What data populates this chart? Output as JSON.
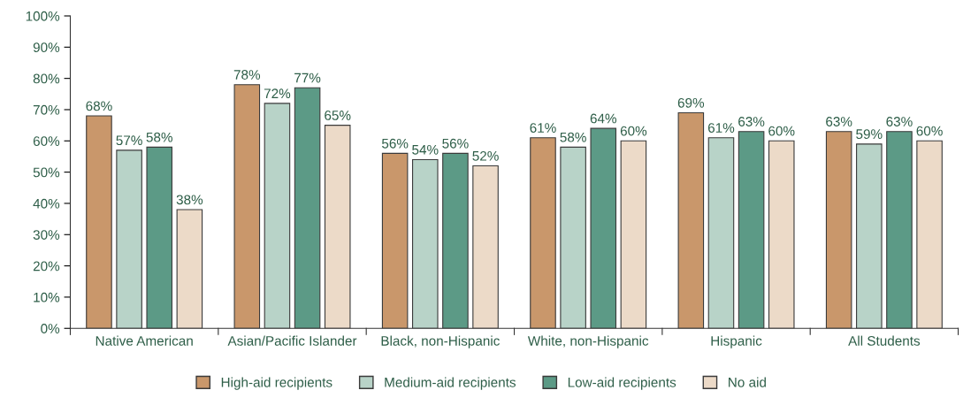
{
  "chart_data": {
    "type": "bar",
    "categories": [
      "Native American",
      "Asian/Pacific Islander",
      "Black, non-Hispanic",
      "White, non-Hispanic",
      "Hispanic",
      "All Students"
    ],
    "series": [
      {
        "name": "High-aid recipients",
        "color": "#c9976b",
        "values": [
          68,
          78,
          56,
          61,
          69,
          63
        ],
        "value_labels": [
          "68%",
          "78%",
          "56%",
          "61%",
          "69%",
          "63%"
        ]
      },
      {
        "name": "Medium-aid recipients",
        "color": "#b8d3c8",
        "values": [
          57,
          72,
          54,
          58,
          61,
          59
        ],
        "value_labels": [
          "57%",
          "72%",
          "54%",
          "58%",
          "61%",
          "59%"
        ]
      },
      {
        "name": "Low-aid recipients",
        "color": "#5c9a86",
        "values": [
          58,
          77,
          56,
          64,
          63,
          63
        ],
        "value_labels": [
          "58%",
          "77%",
          "56%",
          "64%",
          "63%",
          "63%"
        ]
      },
      {
        "name": "No aid",
        "color": "#ecdac8",
        "values": [
          38,
          65,
          52,
          60,
          60,
          60
        ],
        "value_labels": [
          "38%",
          "65%",
          "52%",
          "60%",
          "60%",
          "60%"
        ]
      }
    ],
    "ylim": [
      0,
      100
    ],
    "yticks": [
      {
        "value": 0,
        "label": "0%"
      },
      {
        "value": 10,
        "label": "10%"
      },
      {
        "value": 20,
        "label": "20%"
      },
      {
        "value": 30,
        "label": "30%"
      },
      {
        "value": 40,
        "label": "40%"
      },
      {
        "value": 50,
        "label": "50%"
      },
      {
        "value": 60,
        "label": "60%"
      },
      {
        "value": 70,
        "label": "70%"
      },
      {
        "value": 80,
        "label": "80%"
      },
      {
        "value": 90,
        "label": "90%"
      },
      {
        "value": 100,
        "label": "100%"
      }
    ],
    "grid": false,
    "legend": "bottom"
  }
}
